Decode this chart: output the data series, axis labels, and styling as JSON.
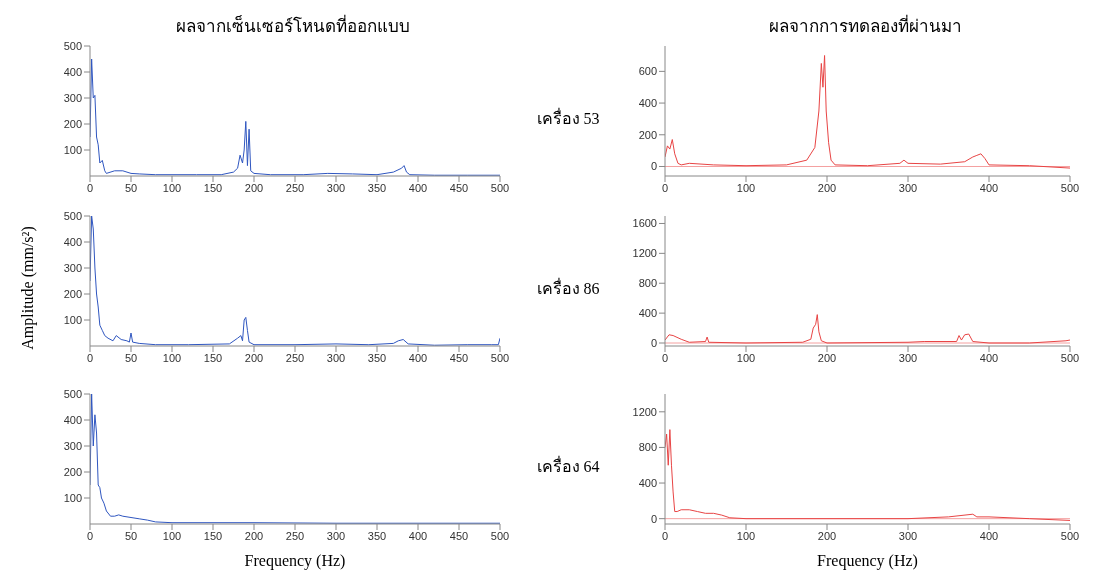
{
  "chart_data": [
    {
      "type": "line",
      "title": "ผลจากเซ็นเซอร์โหนดที่ออกแบบ",
      "xlim": [
        0,
        500
      ],
      "xticks": [
        0,
        50,
        100,
        150,
        200,
        250,
        300,
        350,
        400,
        450,
        500
      ],
      "ylim": [
        0,
        500
      ],
      "yticks": [
        100,
        200,
        300,
        400,
        500
      ],
      "grid": false,
      "legend": false,
      "marker": "none",
      "series": [
        {
          "color": "#2f56c0",
          "x": [
            0,
            2,
            4,
            6,
            8,
            10,
            12,
            15,
            18,
            20,
            30,
            40,
            50,
            60,
            80,
            100,
            130,
            160,
            175,
            180,
            183,
            186,
            188,
            190,
            192,
            194,
            196,
            200,
            220,
            260,
            290,
            320,
            350,
            370,
            380,
            383,
            386,
            390,
            420,
            460,
            500
          ],
          "values": [
            150,
            450,
            300,
            310,
            150,
            120,
            50,
            60,
            20,
            10,
            20,
            20,
            10,
            8,
            5,
            5,
            5,
            5,
            15,
            30,
            80,
            50,
            100,
            210,
            40,
            180,
            20,
            10,
            5,
            5,
            10,
            8,
            5,
            15,
            30,
            40,
            15,
            5,
            3,
            3,
            3
          ]
        }
      ]
    },
    {
      "type": "line",
      "title": "ผลจากการทดลองที่ผ่านมา",
      "ylabel": "เครื่อง 53",
      "xlim": [
        0,
        500
      ],
      "xticks": [
        0,
        100,
        200,
        300,
        400,
        500
      ],
      "ylim": [
        -60,
        760
      ],
      "yticks": [
        0,
        200,
        400,
        600
      ],
      "grid": false,
      "legend": false,
      "marker": "none",
      "ref_lines": [
        {
          "axis": "y",
          "value": 0,
          "color": "#f4a0a0"
        }
      ],
      "series": [
        {
          "color": "#e84444",
          "x": [
            0,
            3,
            6,
            9,
            12,
            16,
            20,
            30,
            60,
            100,
            150,
            175,
            185,
            190,
            193,
            195,
            197,
            199,
            202,
            205,
            210,
            250,
            290,
            295,
            300,
            340,
            370,
            380,
            385,
            390,
            395,
            400,
            450,
            500
          ],
          "values": [
            60,
            130,
            110,
            170,
            80,
            20,
            10,
            20,
            10,
            5,
            10,
            40,
            120,
            350,
            650,
            500,
            700,
            350,
            150,
            40,
            10,
            5,
            20,
            40,
            20,
            15,
            30,
            60,
            70,
            80,
            50,
            10,
            5,
            -10
          ]
        }
      ]
    },
    {
      "type": "line",
      "ylabel": "Amplitude (mm/s²)",
      "xlim": [
        0,
        500
      ],
      "xticks": [
        0,
        50,
        100,
        150,
        200,
        250,
        300,
        350,
        400,
        450,
        500
      ],
      "ylim": [
        0,
        500
      ],
      "yticks": [
        100,
        200,
        300,
        400,
        500
      ],
      "grid": false,
      "legend": false,
      "marker": "none",
      "series": [
        {
          "color": "#2f56c0",
          "x": [
            0,
            2,
            4,
            6,
            8,
            10,
            12,
            15,
            18,
            22,
            28,
            32,
            38,
            45,
            48,
            50,
            52,
            60,
            80,
            120,
            170,
            180,
            184,
            186,
            188,
            190,
            192,
            194,
            200,
            250,
            300,
            340,
            370,
            376,
            382,
            388,
            420,
            460,
            490,
            498,
            500
          ],
          "values": [
            250,
            500,
            450,
            300,
            200,
            150,
            80,
            60,
            40,
            30,
            20,
            40,
            25,
            20,
            15,
            50,
            15,
            10,
            5,
            5,
            8,
            30,
            40,
            20,
            100,
            110,
            60,
            15,
            5,
            5,
            8,
            5,
            10,
            20,
            25,
            8,
            3,
            5,
            5,
            5,
            30
          ]
        }
      ]
    },
    {
      "type": "line",
      "ylabel": "เครื่อง 86",
      "xlim": [
        0,
        500
      ],
      "xticks": [
        0,
        100,
        200,
        300,
        400,
        500
      ],
      "ylim": [
        -40,
        1700
      ],
      "yticks": [
        0,
        400,
        800,
        1200,
        1600
      ],
      "grid": false,
      "legend": false,
      "marker": "none",
      "ref_lines": [
        {
          "axis": "y",
          "value": 0,
          "color": "#f4a0a0"
        }
      ],
      "series": [
        {
          "color": "#e84444",
          "x": [
            0,
            5,
            10,
            20,
            30,
            50,
            52,
            54,
            100,
            170,
            180,
            183,
            186,
            188,
            190,
            193,
            200,
            300,
            320,
            360,
            363,
            366,
            370,
            375,
            380,
            400,
            450,
            495,
            500
          ],
          "values": [
            40,
            110,
            100,
            50,
            10,
            20,
            80,
            10,
            0,
            10,
            50,
            200,
            250,
            380,
            150,
            30,
            0,
            10,
            20,
            20,
            100,
            40,
            110,
            120,
            20,
            0,
            0,
            30,
            40
          ]
        }
      ]
    },
    {
      "type": "line",
      "xlabel": "Frequency (Hz)",
      "xlim": [
        0,
        500
      ],
      "xticks": [
        0,
        50,
        100,
        150,
        200,
        250,
        300,
        350,
        400,
        450,
        500
      ],
      "ylim": [
        0,
        500
      ],
      "yticks": [
        100,
        200,
        300,
        400,
        500
      ],
      "grid": false,
      "legend": false,
      "marker": "none",
      "series": [
        {
          "color": "#2f56c0",
          "x": [
            0,
            2,
            4,
            6,
            8,
            10,
            12,
            14,
            17,
            20,
            25,
            30,
            35,
            40,
            50,
            60,
            70,
            80,
            100,
            200,
            300,
            400,
            500
          ],
          "values": [
            150,
            500,
            300,
            420,
            350,
            150,
            140,
            100,
            80,
            50,
            30,
            30,
            35,
            30,
            25,
            20,
            15,
            8,
            5,
            5,
            3,
            3,
            3
          ]
        }
      ]
    },
    {
      "type": "line",
      "ylabel": "เครื่อง 64",
      "xlabel": "Frequency (Hz)",
      "xlim": [
        0,
        500
      ],
      "xticks": [
        0,
        100,
        200,
        300,
        400,
        500
      ],
      "ylim": [
        -60,
        1400
      ],
      "yticks": [
        0,
        400,
        800,
        1200
      ],
      "grid": false,
      "legend": false,
      "marker": "none",
      "ref_lines": [
        {
          "axis": "y",
          "value": 0,
          "color": "#f4a0a0"
        }
      ],
      "series": [
        {
          "color": "#e84444",
          "x": [
            0,
            2,
            4,
            6,
            8,
            10,
            12,
            15,
            20,
            30,
            40,
            50,
            60,
            70,
            80,
            100,
            200,
            300,
            350,
            380,
            385,
            400,
            450,
            500
          ],
          "values": [
            800,
            950,
            600,
            1000,
            600,
            300,
            80,
            80,
            100,
            100,
            80,
            60,
            60,
            40,
            10,
            0,
            0,
            0,
            20,
            50,
            20,
            20,
            0,
            -20
          ]
        }
      ]
    }
  ]
}
